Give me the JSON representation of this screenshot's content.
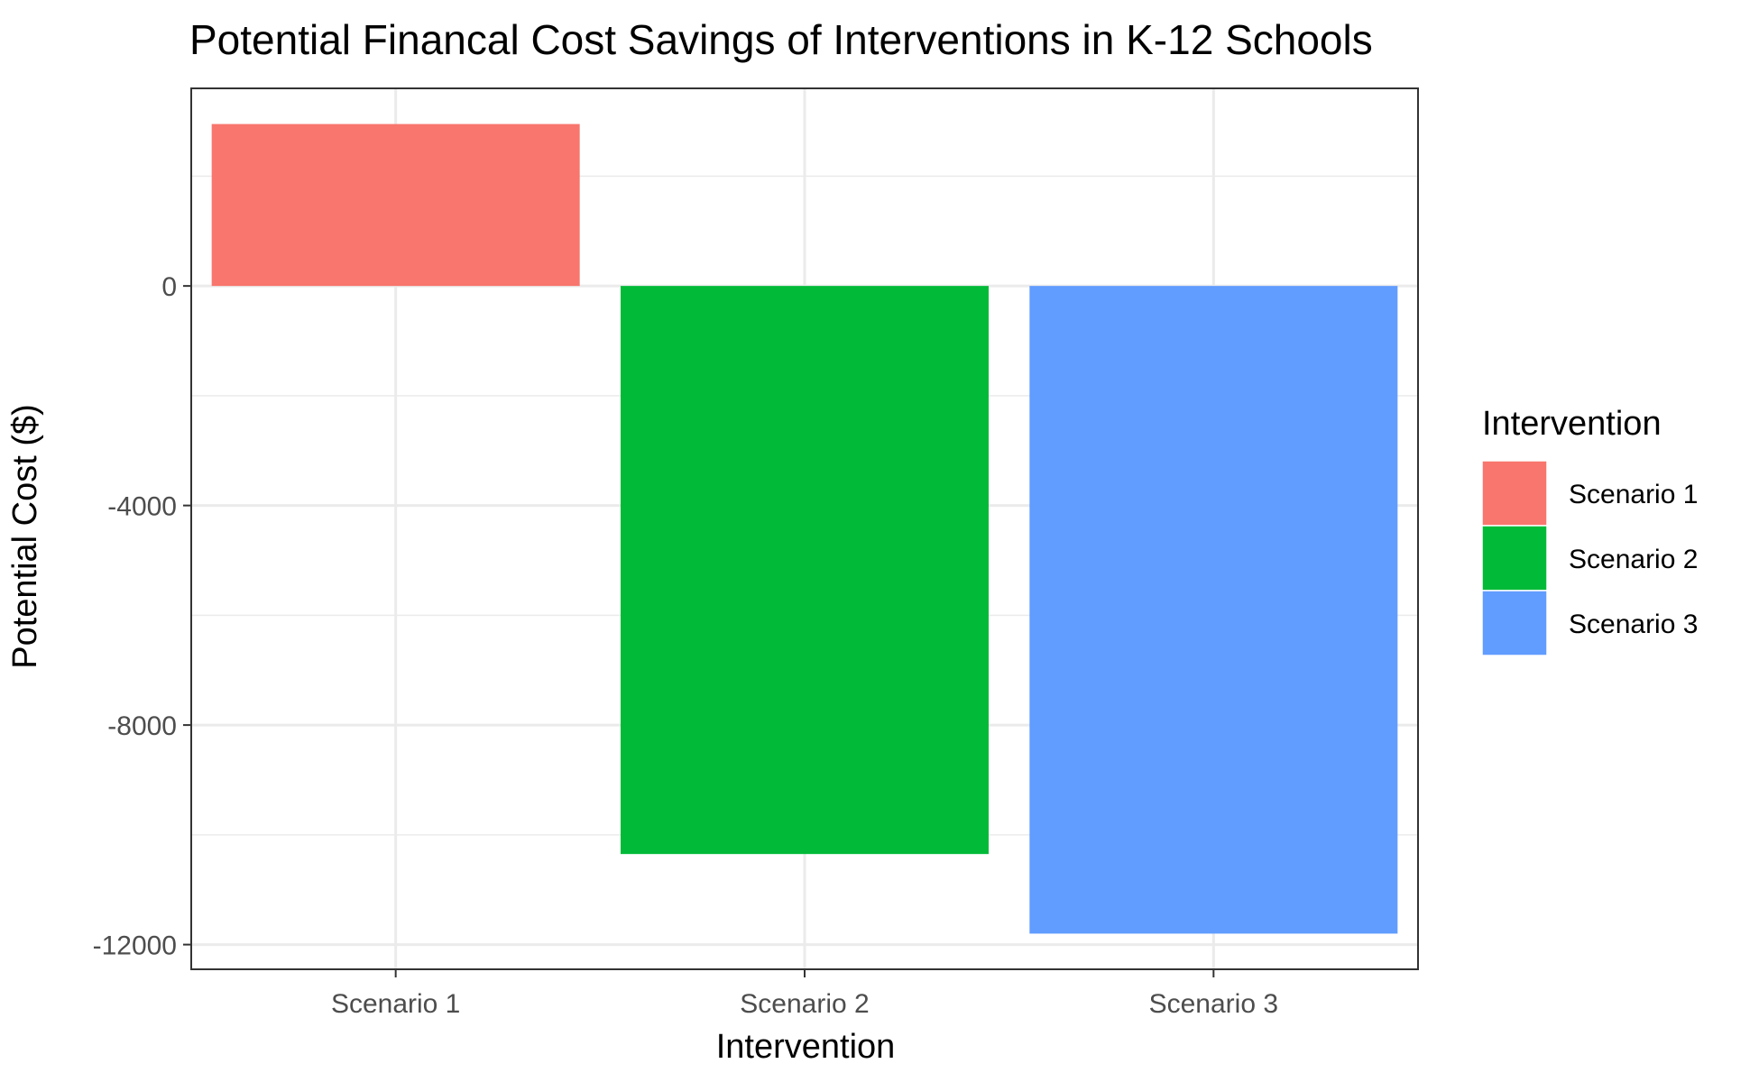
{
  "chart_data": {
    "type": "bar",
    "title": "Potential Financal Cost Savings of Interventions in K-12 Schools",
    "xlabel": "Intervention",
    "ylabel": "Potential Cost ($)",
    "categories": [
      "Scenario 1",
      "Scenario 2",
      "Scenario 3"
    ],
    "values": [
      2950,
      -10350,
      -11800
    ],
    "colors": [
      "#F8766D",
      "#00BA38",
      "#619CFF"
    ],
    "ylim": [
      -12450,
      3600
    ],
    "yticks": [
      0,
      -4000,
      -8000,
      -12000
    ],
    "yticks_minor": [
      2000,
      -2000,
      -6000,
      -10000
    ],
    "grid": true,
    "legend": {
      "title": "Intervention",
      "position": "right",
      "entries": [
        "Scenario 1",
        "Scenario 2",
        "Scenario 3"
      ]
    }
  }
}
